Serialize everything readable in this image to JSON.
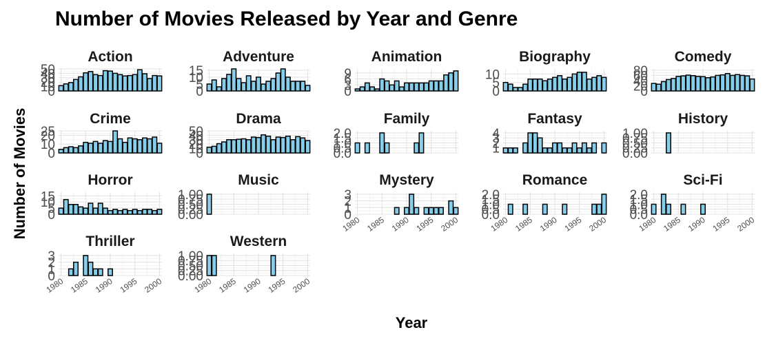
{
  "chart_data": {
    "type": "bar",
    "title": "Number of Movies Released by Year and Genre",
    "xlabel": "Year",
    "ylabel": "Number of Movies",
    "xlim": [
      1979.5,
      2000.5
    ],
    "x_ticks": [
      1980,
      1985,
      1990,
      1995,
      2000
    ],
    "grid": true,
    "facets": [
      {
        "name": "Action",
        "ylim": [
          0,
          50
        ],
        "y_ticks": [
          0,
          10,
          20,
          30,
          40,
          50
        ],
        "x": [
          1980,
          1981,
          1982,
          1983,
          1984,
          1985,
          1986,
          1987,
          1988,
          1989,
          1990,
          1991,
          1992,
          1993,
          1994,
          1995,
          1996,
          1997,
          1998,
          1999,
          2000
        ],
        "values": [
          12,
          16,
          19,
          26,
          32,
          41,
          44,
          37,
          35,
          46,
          45,
          40,
          37,
          34,
          35,
          37,
          48,
          39,
          28,
          35,
          34
        ]
      },
      {
        "name": "Adventure",
        "ylim": [
          0,
          16
        ],
        "y_ticks": [
          0,
          5,
          10,
          15
        ],
        "x": [
          1980,
          1981,
          1982,
          1983,
          1984,
          1985,
          1986,
          1987,
          1988,
          1989,
          1990,
          1991,
          1992,
          1993,
          1994,
          1995,
          1996,
          1997,
          1998,
          1999,
          2000
        ],
        "values": [
          5,
          8,
          3,
          9,
          12,
          16,
          9,
          6,
          11,
          7,
          10,
          5,
          7,
          9,
          13,
          16,
          10,
          7,
          7,
          7,
          4
        ]
      },
      {
        "name": "Animation",
        "ylim": [
          0,
          11
        ],
        "y_ticks": [
          0,
          3,
          6,
          9
        ],
        "x": [
          1980,
          1981,
          1982,
          1983,
          1984,
          1985,
          1986,
          1987,
          1988,
          1989,
          1990,
          1991,
          1992,
          1993,
          1994,
          1995,
          1996,
          1997,
          1998,
          1999,
          2000
        ],
        "values": [
          1,
          2,
          4,
          2,
          1,
          6,
          5,
          3,
          5,
          2,
          4,
          4,
          4,
          4,
          4,
          5,
          5,
          5,
          8,
          9,
          10
        ]
      },
      {
        "name": "Biography",
        "ylim": [
          0,
          13
        ],
        "y_ticks": [
          0,
          5,
          10
        ],
        "x": [
          1980,
          1981,
          1982,
          1983,
          1984,
          1985,
          1986,
          1987,
          1988,
          1989,
          1990,
          1991,
          1992,
          1993,
          1994,
          1995,
          1996,
          1997,
          1998,
          1999,
          2000
        ],
        "values": [
          5,
          4,
          2,
          2,
          4,
          7,
          7,
          7,
          6,
          7,
          8,
          9,
          7,
          8,
          10,
          11,
          11,
          7,
          8,
          9,
          8
        ]
      },
      {
        "name": "Comedy",
        "ylim": [
          0,
          85
        ],
        "y_ticks": [
          0,
          20,
          40,
          60,
          80
        ],
        "x": [
          1980,
          1981,
          1982,
          1983,
          1984,
          1985,
          1986,
          1987,
          1988,
          1989,
          1990,
          1991,
          1992,
          1993,
          1994,
          1995,
          1996,
          1997,
          1998,
          1999,
          2000
        ],
        "values": [
          29,
          26,
          36,
          44,
          48,
          56,
          58,
          61,
          59,
          56,
          55,
          51,
          54,
          60,
          62,
          67,
          60,
          63,
          60,
          58,
          46
        ]
      },
      {
        "name": "Crime",
        "ylim": [
          0,
          25
        ],
        "y_ticks": [
          0,
          10,
          20,
          25
        ],
        "x": [
          1980,
          1981,
          1982,
          1983,
          1984,
          1985,
          1986,
          1987,
          1988,
          1989,
          1990,
          1991,
          1992,
          1993,
          1994,
          1995,
          1996,
          1997,
          1998,
          1999,
          2000
        ],
        "values": [
          4,
          6,
          7,
          6,
          8,
          12,
          11,
          13,
          11,
          14,
          13,
          25,
          16,
          12,
          17,
          16,
          15,
          17,
          16,
          18,
          11
        ]
      },
      {
        "name": "Drama",
        "ylim": [
          0,
          50
        ],
        "y_ticks": [
          0,
          10,
          20,
          30,
          40,
          50
        ],
        "x": [
          1980,
          1981,
          1982,
          1983,
          1984,
          1985,
          1986,
          1987,
          1988,
          1989,
          1990,
          1991,
          1992,
          1993,
          1994,
          1995,
          1996,
          1997,
          1998,
          1999,
          2000
        ],
        "values": [
          13,
          15,
          21,
          25,
          30,
          30,
          31,
          32,
          30,
          36,
          35,
          41,
          38,
          30,
          36,
          35,
          38,
          30,
          37,
          34,
          28
        ]
      },
      {
        "name": "Family",
        "ylim": [
          0,
          2.2
        ],
        "y_ticks": [
          0.0,
          0.5,
          1.0,
          1.5,
          2.0
        ],
        "x": [
          1980,
          1982,
          1985,
          1986,
          1992,
          1993
        ],
        "values": [
          1,
          1,
          2,
          1,
          1,
          2
        ]
      },
      {
        "name": "Fantasy",
        "ylim": [
          0,
          4.4
        ],
        "y_ticks": [
          1,
          2,
          3,
          4
        ],
        "x": [
          1980,
          1981,
          1982,
          1984,
          1985,
          1986,
          1987,
          1988,
          1989,
          1990,
          1991,
          1992,
          1993,
          1994,
          1995,
          1996,
          1997,
          1998,
          2000
        ],
        "values": [
          1,
          1,
          1,
          2,
          4,
          4,
          3,
          1,
          1,
          2,
          2,
          1,
          1,
          2,
          1,
          2,
          1,
          2,
          2
        ]
      },
      {
        "name": "History",
        "ylim": [
          0,
          1.1
        ],
        "y_ticks": [
          0.0,
          0.25,
          0.5,
          0.75,
          1.0
        ],
        "x": [
          1983
        ],
        "values": [
          1
        ]
      },
      {
        "name": "Horror",
        "ylim": [
          0,
          18
        ],
        "y_ticks": [
          0,
          5,
          10,
          15
        ],
        "x": [
          1980,
          1981,
          1982,
          1983,
          1984,
          1985,
          1986,
          1987,
          1988,
          1989,
          1990,
          1991,
          1992,
          1993,
          1994,
          1995,
          1996,
          1997,
          1998,
          1999,
          2000
        ],
        "values": [
          5,
          12,
          8,
          8,
          6,
          5,
          9,
          5,
          9,
          5,
          3,
          4,
          3,
          4,
          3,
          4,
          3,
          4,
          4,
          3,
          4
        ]
      },
      {
        "name": "Music",
        "ylim": [
          0,
          1.1
        ],
        "y_ticks": [
          0.0,
          0.25,
          0.5,
          0.75,
          1.0
        ],
        "x": [
          1980
        ],
        "values": [
          1
        ]
      },
      {
        "name": "Mystery",
        "ylim": [
          0,
          3.3
        ],
        "y_ticks": [
          0,
          1,
          2,
          3
        ],
        "x": [
          1988,
          1990,
          1991,
          1992,
          1994,
          1995,
          1996,
          1997,
          1999,
          2000
        ],
        "values": [
          1,
          1,
          3,
          1,
          1,
          1,
          1,
          1,
          2,
          1
        ]
      },
      {
        "name": "Romance",
        "ylim": [
          0,
          2.2
        ],
        "y_ticks": [
          0.0,
          0.5,
          1.0,
          1.5,
          2.0
        ],
        "x": [
          1981,
          1984,
          1988,
          1992,
          1998,
          1999,
          2000
        ],
        "values": [
          1,
          1,
          1,
          1,
          1,
          1,
          2
        ]
      },
      {
        "name": "Sci-Fi",
        "ylim": [
          0,
          2.2
        ],
        "y_ticks": [
          0.0,
          0.5,
          1.0,
          1.5,
          2.0
        ],
        "x": [
          1980,
          1982,
          1983,
          1986,
          1990
        ],
        "values": [
          1,
          2,
          1,
          1,
          1
        ]
      },
      {
        "name": "Thriller",
        "ylim": [
          0,
          3.3
        ],
        "y_ticks": [
          0,
          1,
          2,
          3
        ],
        "x": [
          1982,
          1983,
          1985,
          1986,
          1987,
          1988,
          1990
        ],
        "values": [
          1,
          2,
          3,
          2,
          1,
          1,
          1
        ]
      },
      {
        "name": "Western",
        "ylim": [
          0,
          1.1
        ],
        "y_ticks": [
          0.0,
          0.25,
          0.5,
          0.75,
          1.0
        ],
        "x": [
          1980,
          1981,
          1993
        ],
        "values": [
          1,
          1,
          1
        ]
      }
    ]
  }
}
